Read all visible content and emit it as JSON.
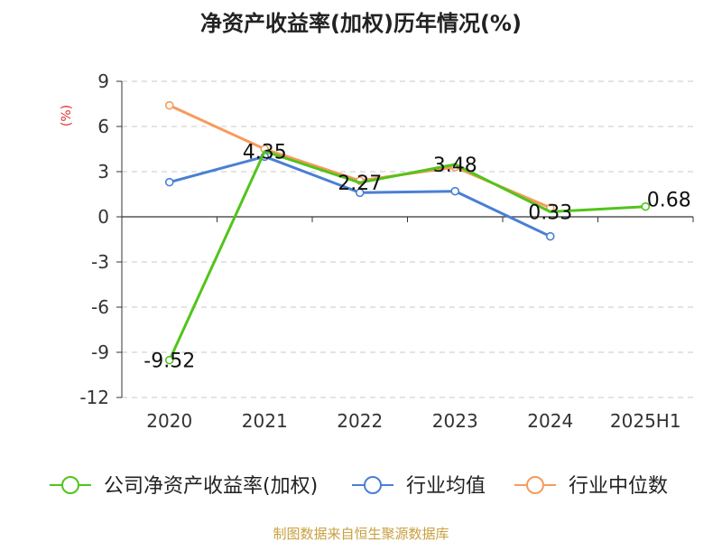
{
  "chart_data": {
    "type": "line",
    "title": "净资产收益率(加权)历年情况(%)",
    "ylabel": "(%)",
    "categories": [
      "2020",
      "2021",
      "2022",
      "2023",
      "2024",
      "2025H1"
    ],
    "yticks": [
      "9",
      "6",
      "3",
      "0",
      "-3",
      "-6",
      "-9",
      "-12"
    ],
    "ylim": [
      -12,
      9
    ],
    "grid": true,
    "legend_position": "bottom",
    "series": [
      {
        "name": "公司净资产收益率(加权)",
        "color": "#52c41a",
        "values": [
          -9.52,
          4.35,
          2.27,
          3.48,
          0.33,
          0.68
        ],
        "labels": [
          "-9.52",
          "4.35",
          "2.27",
          "3.48",
          "0.33",
          "0.68"
        ]
      },
      {
        "name": "行业均值",
        "color": "#4a7fd4",
        "values": [
          2.3,
          4.0,
          1.6,
          1.7,
          -1.3,
          null
        ]
      },
      {
        "name": "行业中位数",
        "color": "#f79a5c",
        "values": [
          7.4,
          4.5,
          2.4,
          3.3,
          0.6,
          null
        ]
      }
    ]
  },
  "footer": {
    "source": "制图数据来自恒生聚源数据库"
  }
}
